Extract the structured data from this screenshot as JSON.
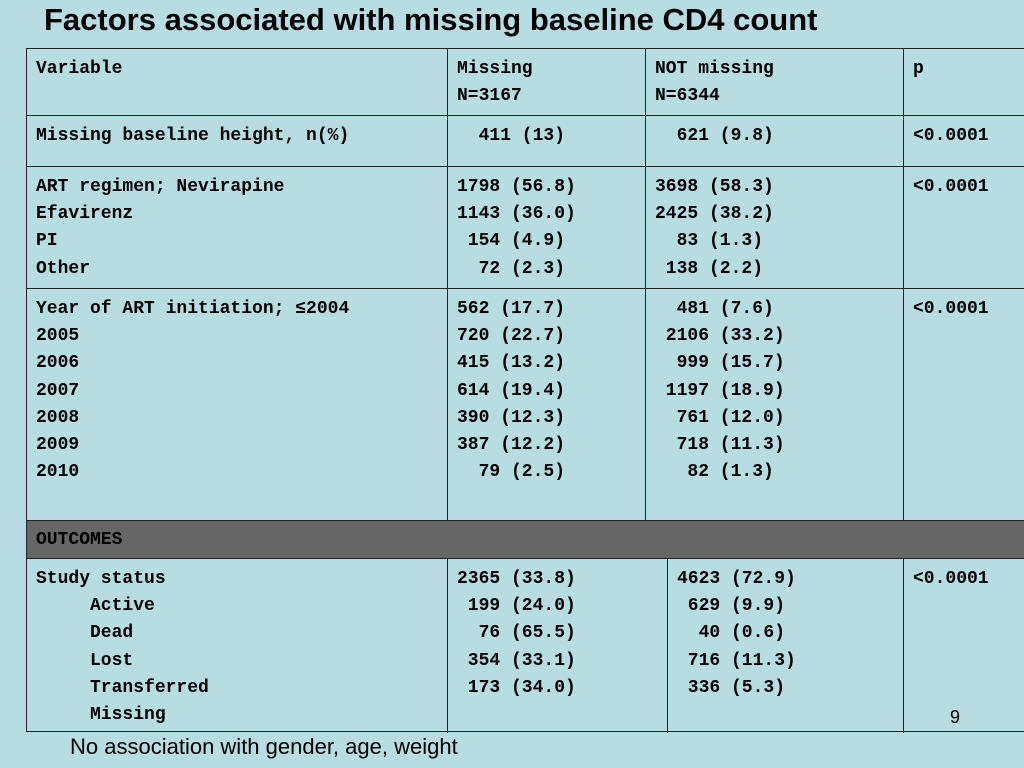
{
  "title": "Factors associated with missing baseline CD4 count",
  "table": {
    "header": {
      "variable": "Variable",
      "missing": "Missing\nN=3167",
      "not_missing": "NOT missing\nN=6344",
      "p": "p"
    },
    "rows": [
      {
        "variable": "Missing baseline height, n(%)",
        "missing": "  411 (13)",
        "not_missing": "  621 (9.8)",
        "p": "<0.0001"
      },
      {
        "variable": "ART regimen; Nevirapine\nEfavirenz\nPI\nOther",
        "missing": "1798 (56.8)\n1143 (36.0)\n 154 (4.9)\n  72 (2.3)",
        "not_missing": "3698 (58.3)\n2425 (38.2)\n  83 (1.3)\n 138 (2.2)",
        "p": "<0.0001"
      },
      {
        "variable": "Year of ART initiation; ≤2004\n2005\n2006\n2007\n2008\n2009\n2010",
        "missing": "562 (17.7)\n720 (22.7)\n415 (13.2)\n614 (19.4)\n390 (12.3)\n387 (12.2)\n  79 (2.5)",
        "not_missing": "  481 (7.6)\n 2106 (33.2)\n  999 (15.7)\n 1197 (18.9)\n  761 (12.0)\n  718 (11.3)\n   82 (1.3)",
        "p": "<0.0001"
      }
    ],
    "outcomes_label": "OUTCOMES",
    "outcomes_row": {
      "variable": "Study status\n     Active\n     Dead\n     Lost\n     Transferred\n     Missing",
      "missing": "2365 (33.8)\n 199 (24.0)\n  76 (65.5)\n 354 (33.1)\n 173 (34.0)",
      "not_missing": "4623 (72.9)\n 629 (9.9)\n  40 (0.6)\n 716 (11.3)\n 336 (5.3)",
      "p": "<0.0001"
    }
  },
  "page_number": "9",
  "footnote": "No association with gender, age, weight"
}
